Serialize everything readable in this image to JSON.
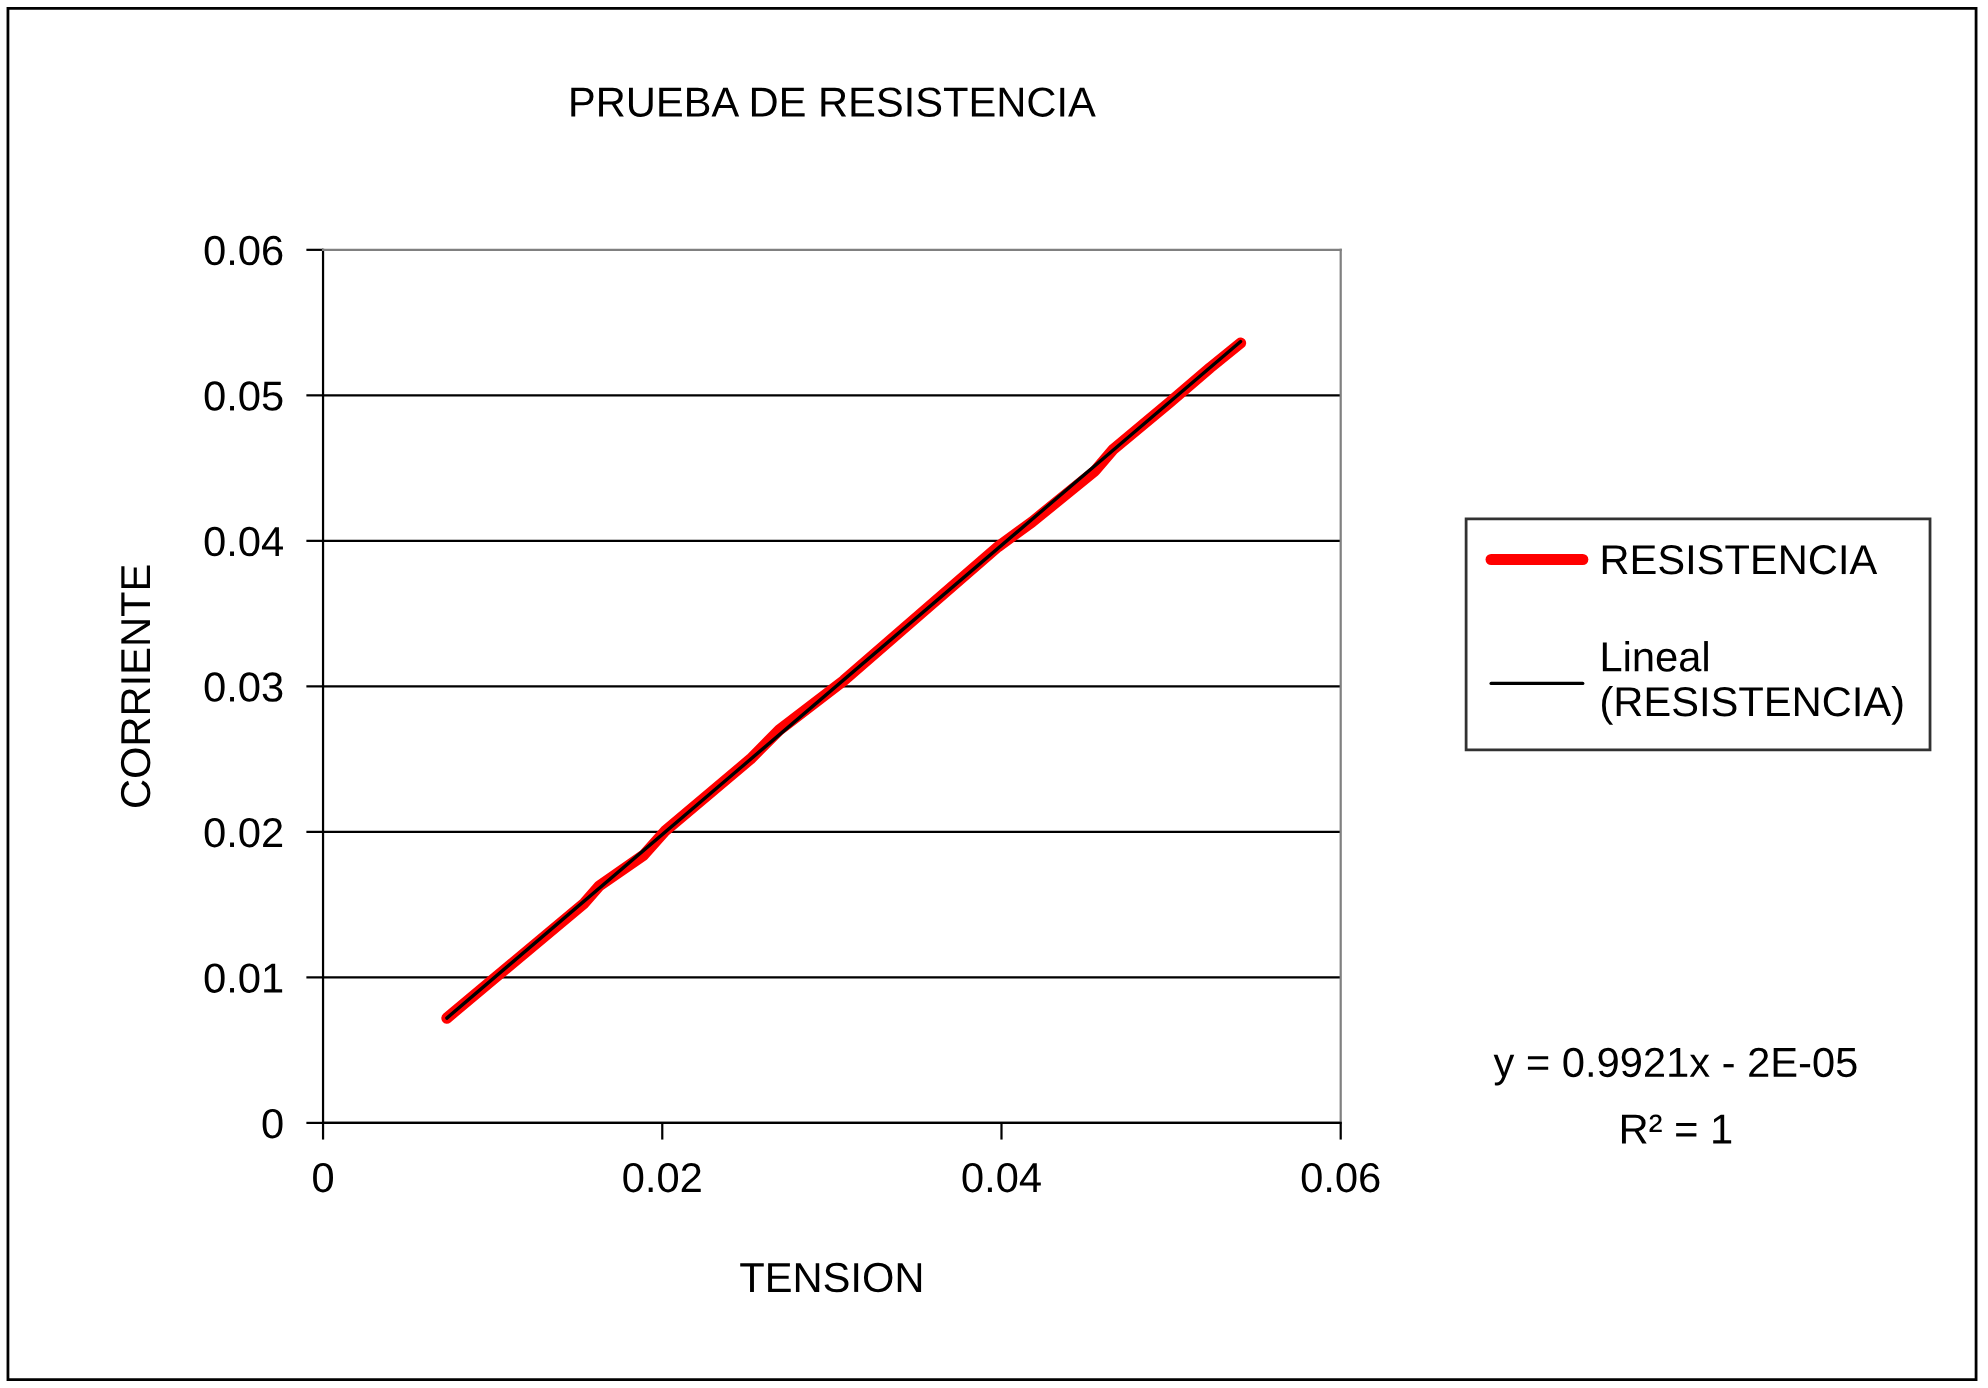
{
  "chart_data": {
    "type": "line",
    "title": "PRUEBA DE RESISTENCIA",
    "xlabel": "TENSION",
    "ylabel": "CORRIENTE",
    "xlim": [
      0,
      0.06
    ],
    "xticks": [
      0,
      0.02,
      0.04,
      0.06
    ],
    "ylim": [
      0,
      0.06
    ],
    "yticks": [
      0,
      0.01,
      0.02,
      0.03,
      0.04,
      0.05,
      0.06
    ],
    "grid": "y",
    "legend": "right",
    "marker": "none",
    "series": [
      {
        "name": "RESISTENCIA",
        "color": "#ff0000",
        "x": [
          0.0073,
          0.0154,
          0.0163,
          0.0189,
          0.0202,
          0.0252,
          0.0269,
          0.0307,
          0.0398,
          0.0418,
          0.0455,
          0.0466,
          0.0499,
          0.0523,
          0.0541
        ],
        "values": [
          0.0072,
          0.0151,
          0.0163,
          0.0184,
          0.0201,
          0.025,
          0.027,
          0.0304,
          0.0396,
          0.0413,
          0.0448,
          0.0463,
          0.0495,
          0.0519,
          0.0536
        ]
      },
      {
        "name": "Lineal (RESISTENCIA)",
        "type": "line",
        "color": "#000000",
        "x": [
          0.0073,
          0.0541
        ],
        "values": [
          0.0072,
          0.0537
        ]
      }
    ],
    "annotations": [
      "y = 0.9921x - 2E-05",
      "R² = 1"
    ]
  }
}
